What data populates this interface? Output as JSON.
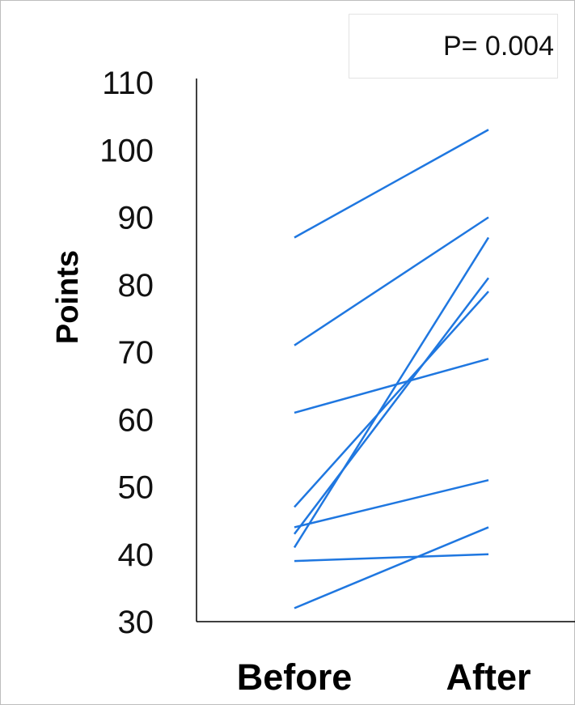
{
  "annotation": "P= 0.004",
  "chart_data": {
    "type": "line",
    "title": "",
    "xlabel": "",
    "ylabel": "Points",
    "categories": [
      "Before",
      "After"
    ],
    "ylim": [
      30,
      110
    ],
    "yticks": [
      30,
      40,
      50,
      60,
      70,
      80,
      90,
      100,
      110
    ],
    "grid": false,
    "legend": "none",
    "line_color": "#1f77e0",
    "series": [
      {
        "values": [
          87,
          103
        ]
      },
      {
        "values": [
          71,
          90
        ]
      },
      {
        "values": [
          61,
          69
        ]
      },
      {
        "values": [
          47,
          79
        ]
      },
      {
        "values": [
          44,
          51
        ]
      },
      {
        "values": [
          43,
          81
        ]
      },
      {
        "values": [
          41,
          87
        ]
      },
      {
        "values": [
          39,
          40
        ]
      },
      {
        "values": [
          32,
          44
        ]
      }
    ]
  }
}
